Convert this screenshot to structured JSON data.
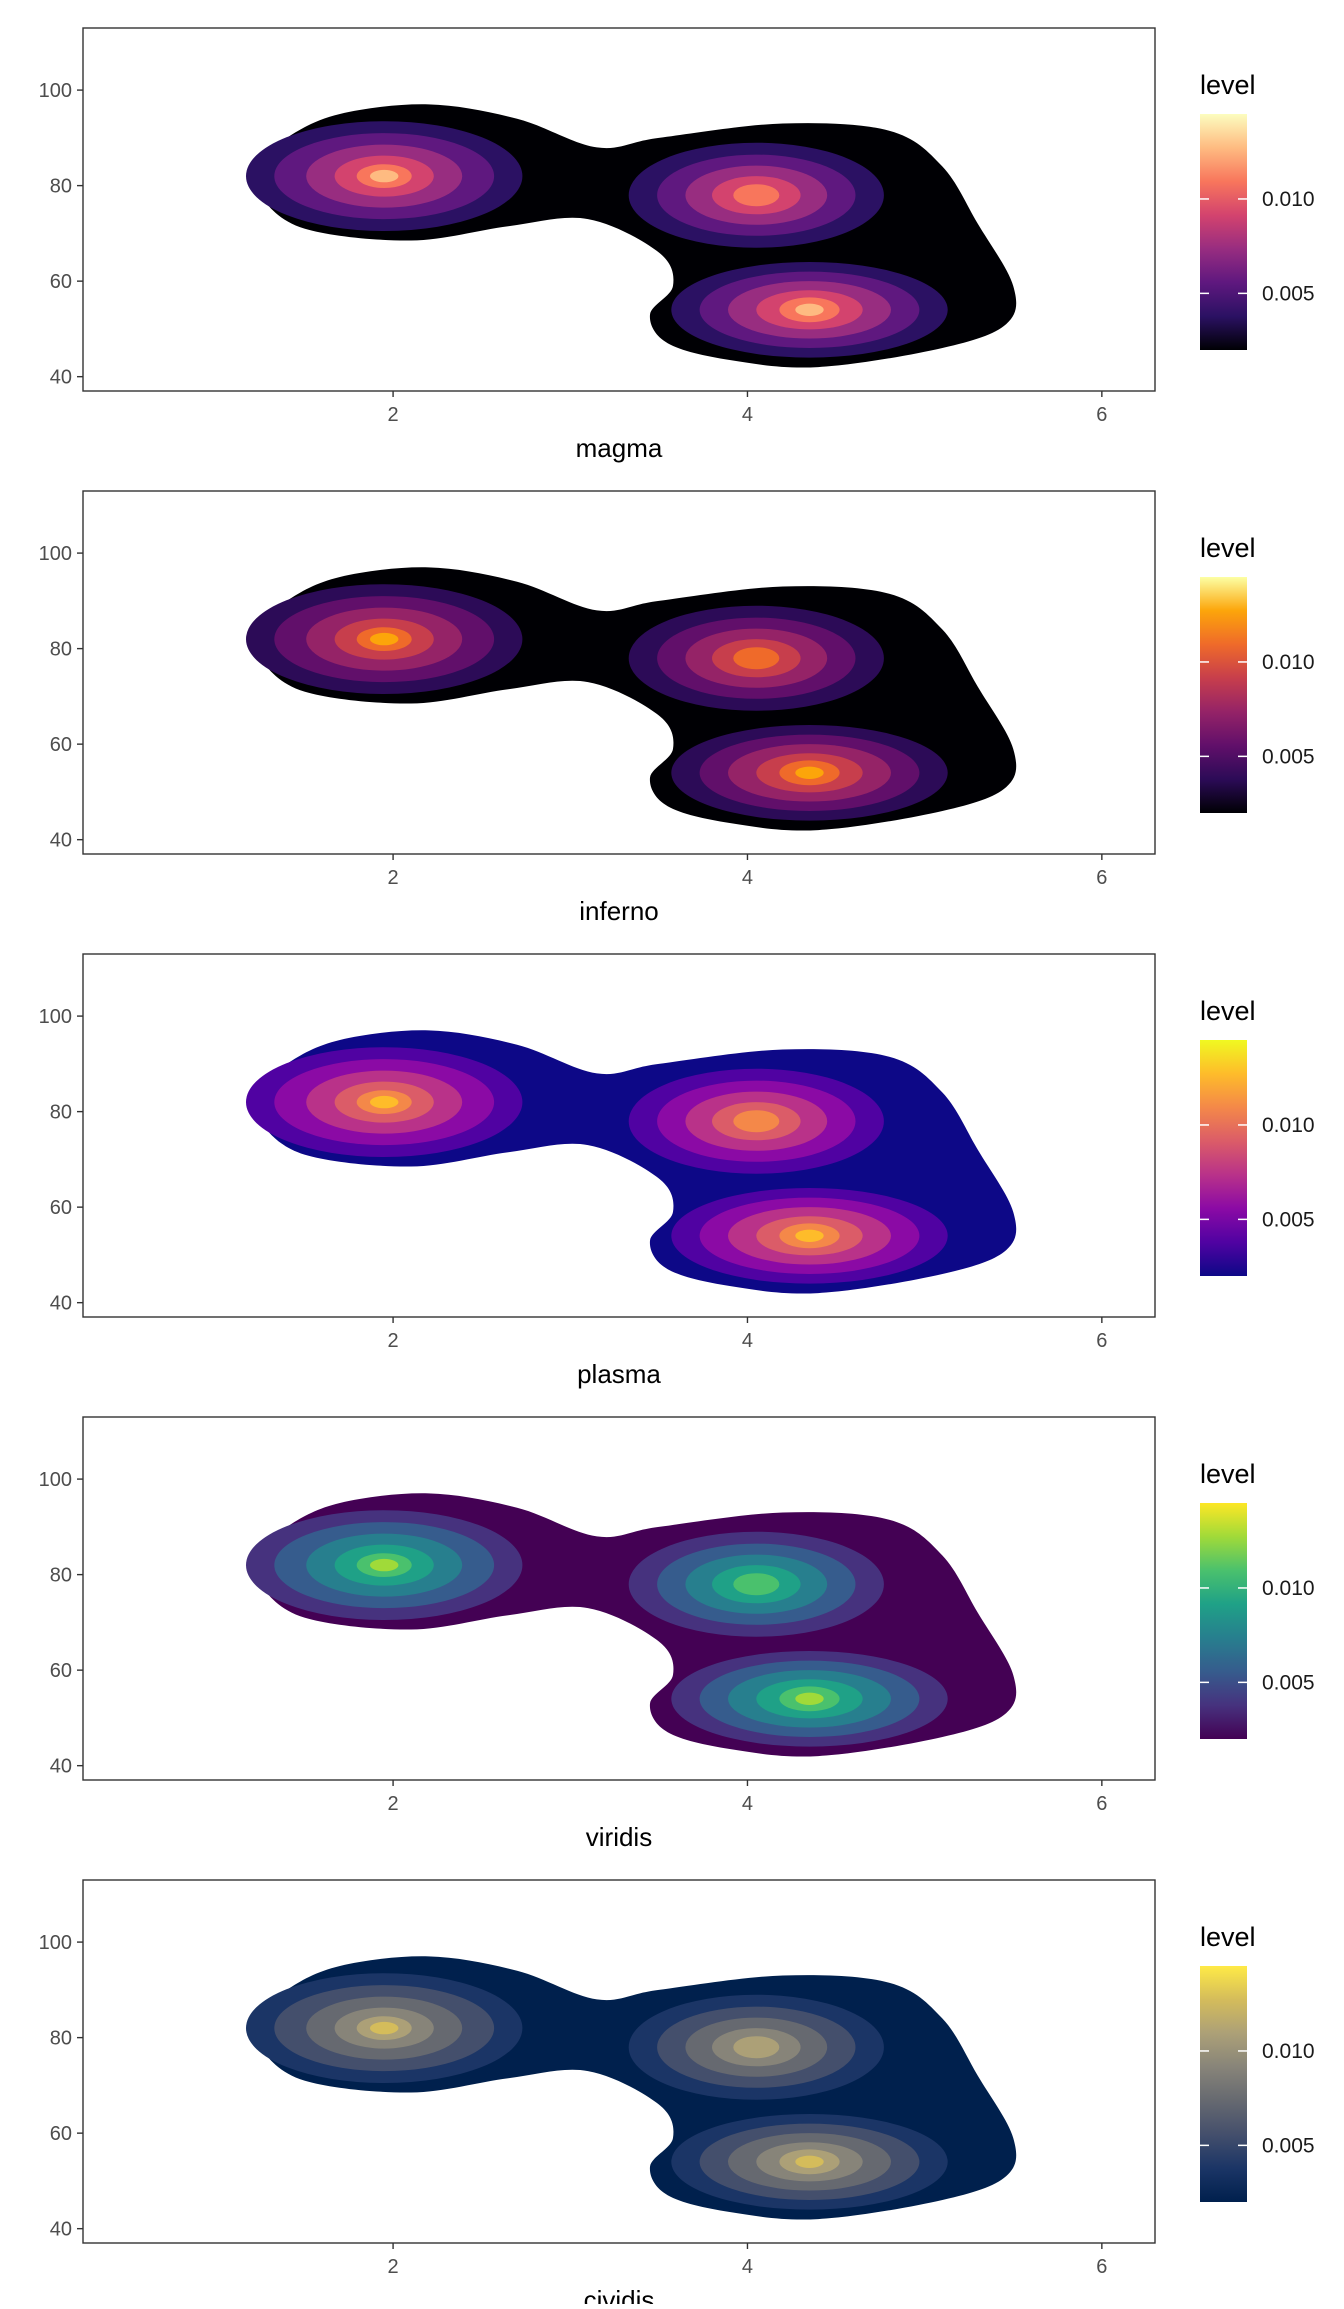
{
  "chart_data": [
    {
      "type": "heatmap",
      "xlabel": "magma",
      "ylabel": "",
      "xlim": [
        0.25,
        6.3
      ],
      "ylim": [
        37,
        113
      ],
      "x_ticks": [
        2,
        4,
        6
      ],
      "y_ticks": [
        40,
        60,
        80,
        100
      ],
      "grid": false,
      "legend": {
        "title": "level",
        "position": "right",
        "ticks": [
          0.005,
          0.01
        ],
        "tick_labels": [
          "0.005",
          "0.010"
        ],
        "range": [
          0.002,
          0.0145
        ]
      },
      "levels": [
        0.002,
        0.004,
        0.006,
        0.008,
        0.01,
        0.012,
        0.014
      ],
      "colors": [
        "#000004",
        "#2b1163",
        "#5f187f",
        "#982d80",
        "#d3436e",
        "#f8765c",
        "#febb81",
        "#fcfdbf"
      ],
      "peaks": [
        {
          "x": 1.95,
          "y": 82,
          "density": 0.0145
        },
        {
          "x": 4.35,
          "y": 54,
          "density": 0.013
        },
        {
          "x": 4.05,
          "y": 78,
          "density": 0.012
        }
      ]
    },
    {
      "type": "heatmap",
      "xlabel": "inferno",
      "ylabel": "",
      "xlim": [
        0.25,
        6.3
      ],
      "ylim": [
        37,
        113
      ],
      "x_ticks": [
        2,
        4,
        6
      ],
      "y_ticks": [
        40,
        60,
        80,
        100
      ],
      "grid": false,
      "legend": {
        "title": "level",
        "position": "right",
        "ticks": [
          0.005,
          0.01
        ],
        "tick_labels": [
          "0.005",
          "0.010"
        ],
        "range": [
          0.002,
          0.0145
        ]
      },
      "levels": [
        0.002,
        0.004,
        0.006,
        0.008,
        0.01,
        0.012,
        0.014
      ],
      "colors": [
        "#000004",
        "#2c0b57",
        "#610f6a",
        "#952367",
        "#c73e4c",
        "#ef6a2a",
        "#fca50a",
        "#fcffa4"
      ],
      "peaks": [
        {
          "x": 1.95,
          "y": 82,
          "density": 0.0145
        },
        {
          "x": 4.35,
          "y": 54,
          "density": 0.013
        },
        {
          "x": 4.05,
          "y": 78,
          "density": 0.012
        }
      ]
    },
    {
      "type": "heatmap",
      "xlabel": "plasma",
      "ylabel": "",
      "xlim": [
        0.25,
        6.3
      ],
      "ylim": [
        37,
        113
      ],
      "x_ticks": [
        2,
        4,
        6
      ],
      "y_ticks": [
        40,
        60,
        80,
        100
      ],
      "grid": false,
      "legend": {
        "title": "level",
        "position": "right",
        "ticks": [
          0.005,
          0.01
        ],
        "tick_labels": [
          "0.005",
          "0.010"
        ],
        "range": [
          0.002,
          0.0145
        ]
      },
      "levels": [
        0.002,
        0.004,
        0.006,
        0.008,
        0.01,
        0.012,
        0.014
      ],
      "colors": [
        "#0d0887",
        "#5002a2",
        "#8b0aa5",
        "#b93289",
        "#db5c68",
        "#f48849",
        "#febc2a",
        "#f0f921"
      ],
      "peaks": [
        {
          "x": 1.95,
          "y": 82,
          "density": 0.0145
        },
        {
          "x": 4.35,
          "y": 54,
          "density": 0.013
        },
        {
          "x": 4.05,
          "y": 78,
          "density": 0.012
        }
      ]
    },
    {
      "type": "heatmap",
      "xlabel": "viridis",
      "ylabel": "",
      "xlim": [
        0.25,
        6.3
      ],
      "ylim": [
        37,
        113
      ],
      "x_ticks": [
        2,
        4,
        6
      ],
      "y_ticks": [
        40,
        60,
        80,
        100
      ],
      "grid": false,
      "legend": {
        "title": "level",
        "position": "right",
        "ticks": [
          0.005,
          0.01
        ],
        "tick_labels": [
          "0.005",
          "0.010"
        ],
        "range": [
          0.002,
          0.0145
        ]
      },
      "levels": [
        0.002,
        0.004,
        0.006,
        0.008,
        0.01,
        0.012,
        0.014
      ],
      "colors": [
        "#440154",
        "#46327e",
        "#365c8d",
        "#277f8e",
        "#1fa187",
        "#4ac16d",
        "#a0da39",
        "#fde725"
      ],
      "peaks": [
        {
          "x": 1.95,
          "y": 82,
          "density": 0.0145
        },
        {
          "x": 4.35,
          "y": 54,
          "density": 0.013
        },
        {
          "x": 4.05,
          "y": 78,
          "density": 0.012
        }
      ]
    },
    {
      "type": "heatmap",
      "xlabel": "cividis",
      "ylabel": "",
      "xlim": [
        0.25,
        6.3
      ],
      "ylim": [
        37,
        113
      ],
      "x_ticks": [
        2,
        4,
        6
      ],
      "y_ticks": [
        40,
        60,
        80,
        100
      ],
      "grid": false,
      "legend": {
        "title": "level",
        "position": "right",
        "ticks": [
          0.005,
          0.01
        ],
        "tick_labels": [
          "0.005",
          "0.010"
        ],
        "range": [
          0.002,
          0.0145
        ]
      },
      "levels": [
        0.002,
        0.004,
        0.006,
        0.008,
        0.01,
        0.012,
        0.014
      ],
      "colors": [
        "#00204d",
        "#1b3566",
        "#444f6c",
        "#666970",
        "#878479",
        "#aca077",
        "#d4bc5b",
        "#ffea46"
      ],
      "peaks": [
        {
          "x": 1.95,
          "y": 82,
          "density": 0.0145
        },
        {
          "x": 4.35,
          "y": 54,
          "density": 0.013
        },
        {
          "x": 4.05,
          "y": 78,
          "density": 0.012
        }
      ]
    }
  ]
}
